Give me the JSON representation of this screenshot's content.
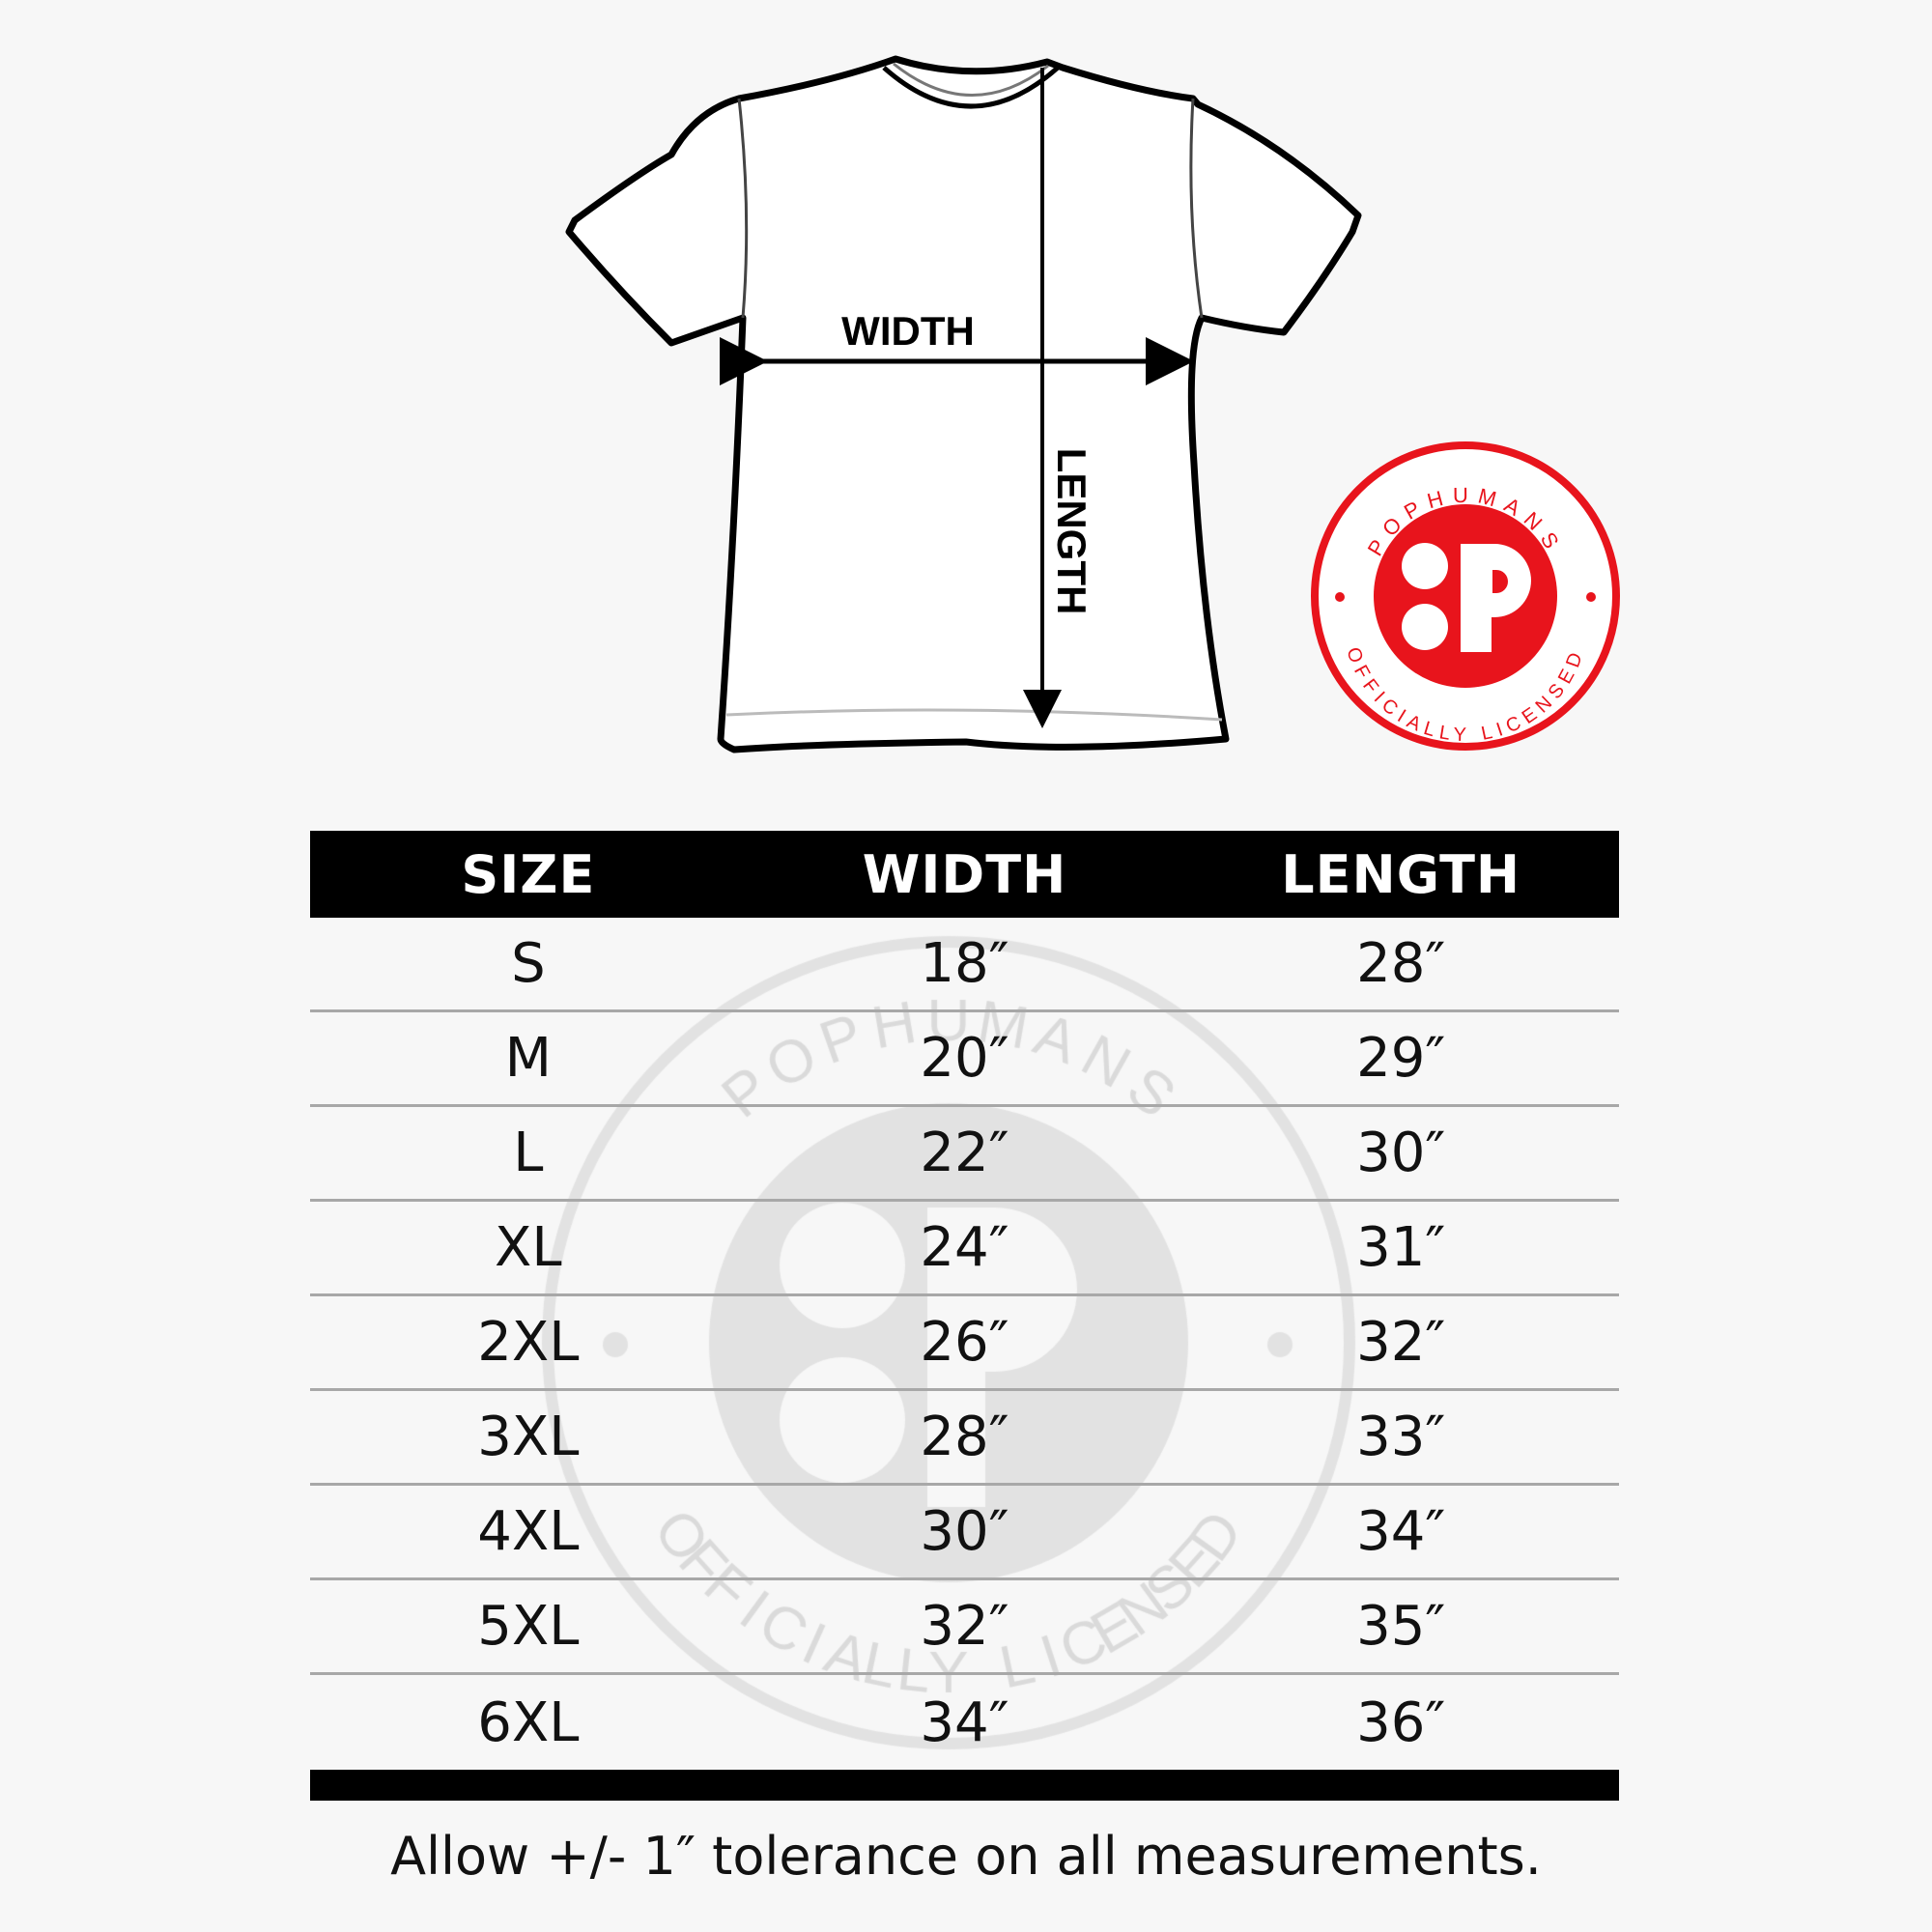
{
  "diagram": {
    "width_label": "WIDTH",
    "length_label": "LENGTH"
  },
  "logo": {
    "top_text": "POPHUMANS",
    "bottom_text": "OFFICIALLY LICENSED",
    "color": "#e8141c"
  },
  "table": {
    "headers": [
      "SIZE",
      "WIDTH",
      "LENGTH"
    ],
    "rows": [
      [
        "S",
        "18″",
        "28″"
      ],
      [
        "M",
        "20″",
        "29″"
      ],
      [
        "L",
        "22″",
        "30″"
      ],
      [
        "XL",
        "24″",
        "31″"
      ],
      [
        "2XL",
        "26″",
        "32″"
      ],
      [
        "3XL",
        "28″",
        "33″"
      ],
      [
        "4XL",
        "30″",
        "34″"
      ],
      [
        "5XL",
        "32″",
        "35″"
      ],
      [
        "6XL",
        "34″",
        "36″"
      ]
    ]
  },
  "footer": "Allow +/- 1″ tolerance on all measurements."
}
